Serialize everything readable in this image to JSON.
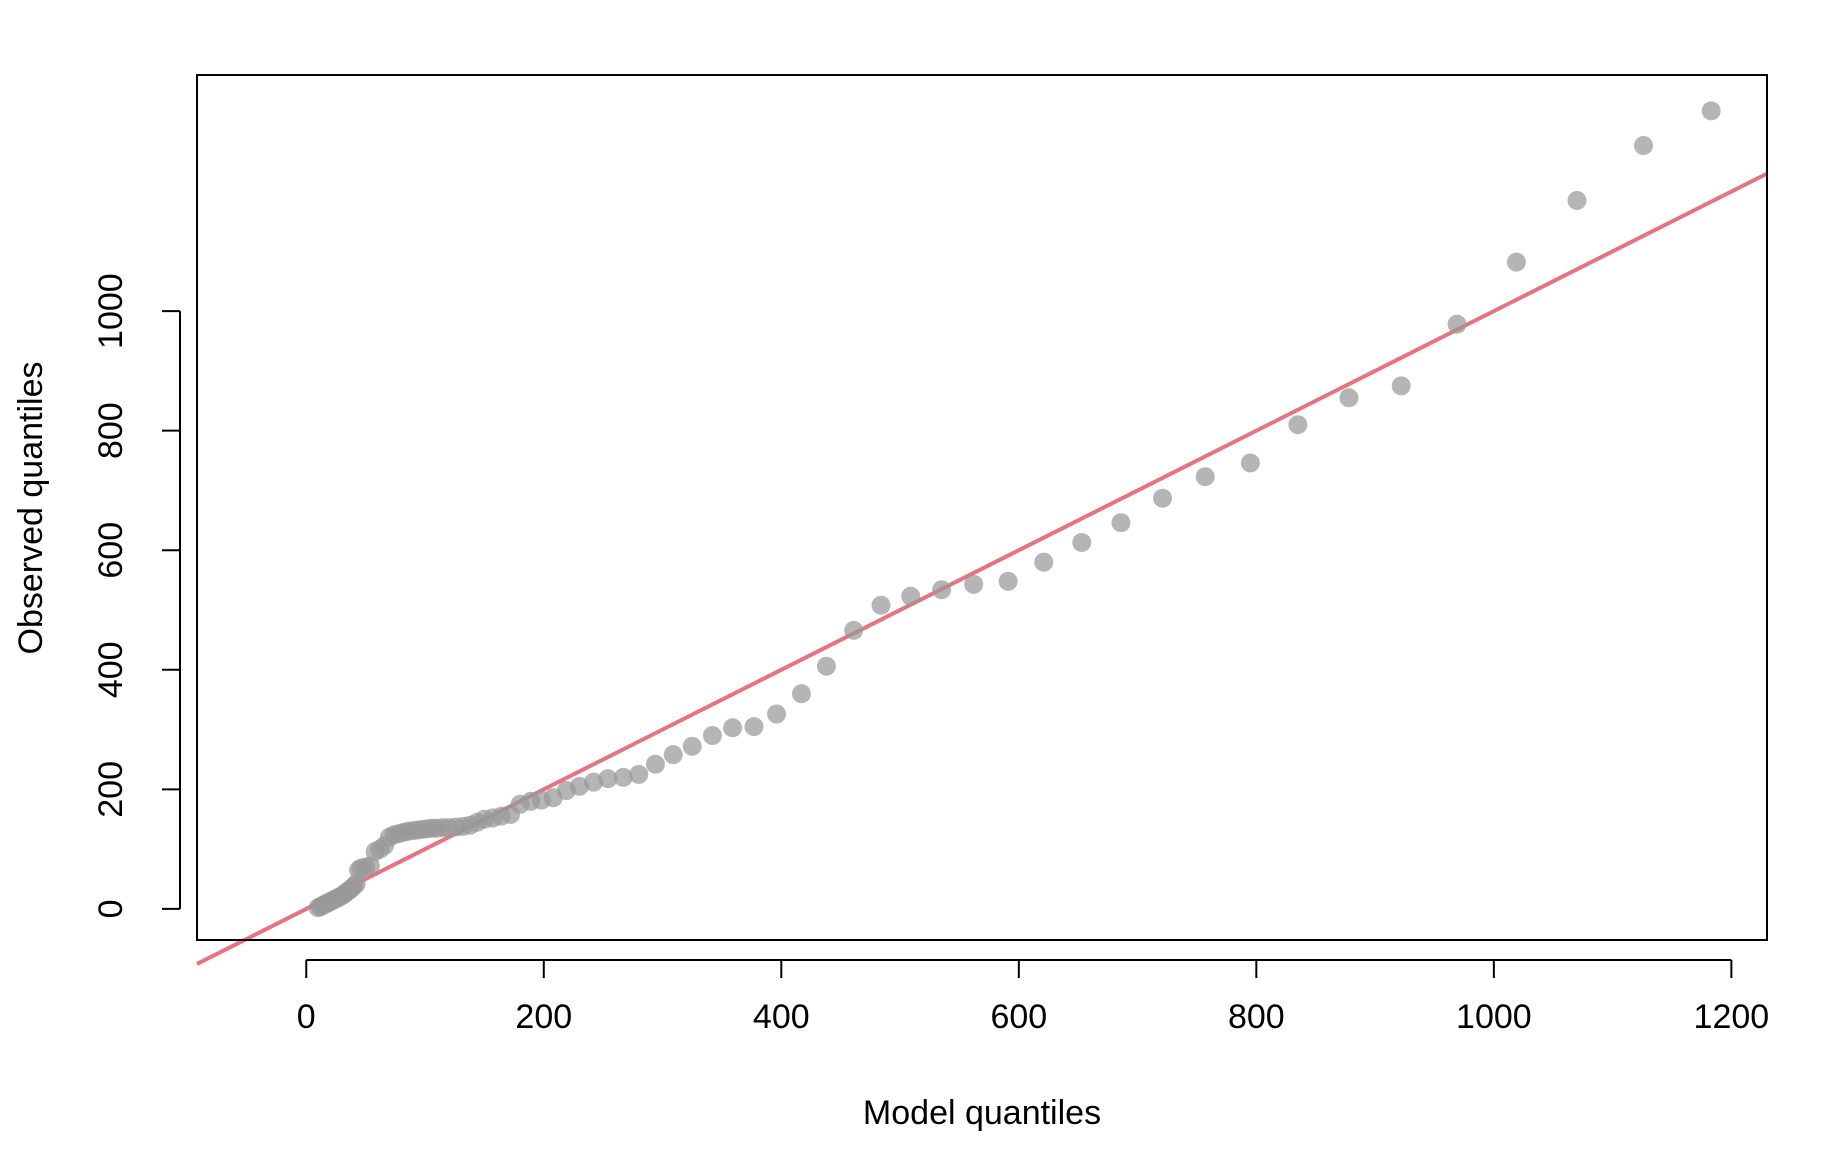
{
  "chart_data": {
    "type": "scatter",
    "title": "",
    "xlabel": "Model quantiles",
    "ylabel": "Observed quantiles",
    "xlim": [
      -92,
      1230
    ],
    "ylim": [
      -52,
      1395
    ],
    "x_ticks": [
      0,
      200,
      400,
      600,
      800,
      1000,
      1200
    ],
    "y_ticks": [
      0,
      200,
      400,
      600,
      800,
      1000
    ],
    "grid": false,
    "reference_line": {
      "slope": 1,
      "intercept": 0,
      "color": "#e8737f"
    },
    "point_color": "#999999",
    "series": [
      {
        "x": [
          10,
          12,
          14,
          16,
          18,
          20,
          22,
          24,
          26,
          28,
          30,
          32,
          34,
          36,
          38,
          40,
          42,
          44,
          46,
          50,
          54,
          58,
          62,
          66,
          70,
          74,
          78,
          82,
          86,
          90,
          94,
          98,
          102,
          106,
          110,
          115,
          120,
          126,
          132,
          138,
          144,
          150,
          157,
          164,
          172,
          180,
          189,
          198,
          208,
          219,
          230,
          242,
          254,
          267,
          280,
          294,
          309,
          325,
          342,
          359,
          377,
          396,
          417,
          438,
          461,
          484,
          509,
          535,
          562,
          591,
          621,
          653,
          686,
          721,
          757,
          795,
          835,
          878,
          922,
          969,
          1019,
          1070,
          1126,
          1183
        ],
        "y": [
          2,
          4,
          6,
          8,
          10,
          12,
          14,
          16,
          18,
          20,
          22,
          25,
          28,
          31,
          34,
          38,
          42,
          65,
          68,
          70,
          72,
          96,
          100,
          106,
          120,
          124,
          126,
          128,
          130,
          131,
          132,
          133,
          134,
          135,
          135,
          136,
          136,
          137,
          138,
          140,
          145,
          150,
          152,
          155,
          158,
          175,
          180,
          182,
          186,
          198,
          205,
          212,
          218,
          220,
          225,
          242,
          258,
          272,
          290,
          303,
          305,
          326,
          360,
          406,
          466,
          508,
          523,
          534,
          543,
          548,
          580,
          613,
          646,
          687,
          723,
          746,
          810,
          855,
          875,
          978,
          1082,
          1185,
          1277,
          1335
        ]
      }
    ]
  }
}
